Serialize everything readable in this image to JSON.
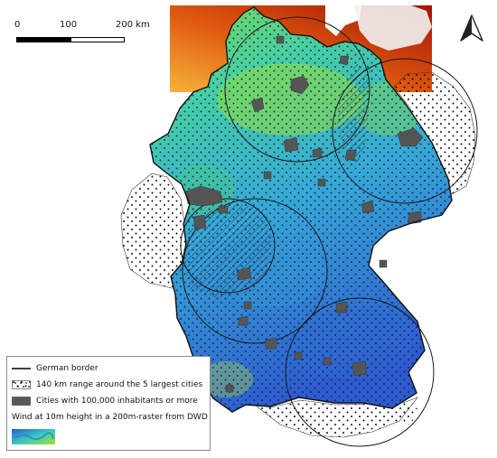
{
  "scale_bar": {
    "labels": [
      "0",
      "100",
      "200 km"
    ]
  },
  "legend": {
    "items": [
      {
        "label": "German border",
        "symbol": "solid-line-icon"
      },
      {
        "label": "140 km range around the 5 largest cities",
        "symbol": "dotted-box-icon"
      },
      {
        "label": "Cities with 100,000 inhabitants or more",
        "symbol": "gray-box-icon"
      }
    ],
    "raster_title": "Wind at 10m height in a 200m-raster from DWD"
  },
  "north_arrow": {
    "icon": "north-arrow-icon"
  },
  "colors": {
    "wind_low": "#2d5ad0",
    "wind_mid": "#38c9c0",
    "wind_high": "#a6e02c",
    "north_sea_low": "#f3a326",
    "north_sea_high": "#b11a05",
    "city": "#595959"
  }
}
